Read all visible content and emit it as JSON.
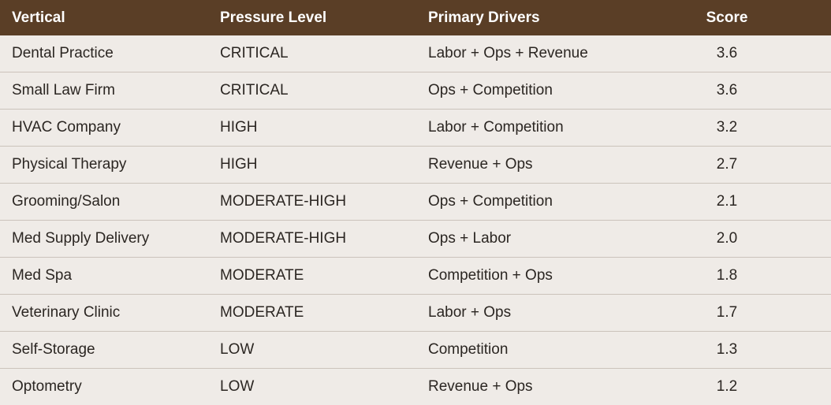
{
  "table": {
    "header": [
      "Vertical",
      "Pressure Level",
      "Primary Drivers",
      "Score"
    ],
    "rows": [
      [
        "Dental Practice",
        "CRITICAL",
        "Labor + Ops + Revenue",
        "3.6"
      ],
      [
        "Small Law Firm",
        "CRITICAL",
        "Ops + Competition",
        "3.6"
      ],
      [
        "HVAC Company",
        "HIGH",
        "Labor + Competition",
        "3.2"
      ],
      [
        "Physical Therapy",
        "HIGH",
        "Revenue + Ops",
        "2.7"
      ],
      [
        "Grooming/Salon",
        "MODERATE-HIGH",
        "Ops + Competition",
        "2.1"
      ],
      [
        "Med Supply Delivery",
        "MODERATE-HIGH",
        "Ops + Labor",
        "2.0"
      ],
      [
        "Med Spa",
        "MODERATE",
        "Competition + Ops",
        "1.8"
      ],
      [
        "Veterinary Clinic",
        "MODERATE",
        "Labor + Ops",
        "1.7"
      ],
      [
        "Self-Storage",
        "LOW",
        "Competition",
        "1.3"
      ],
      [
        "Optometry",
        "LOW",
        "Revenue + Ops",
        "1.2"
      ]
    ]
  }
}
